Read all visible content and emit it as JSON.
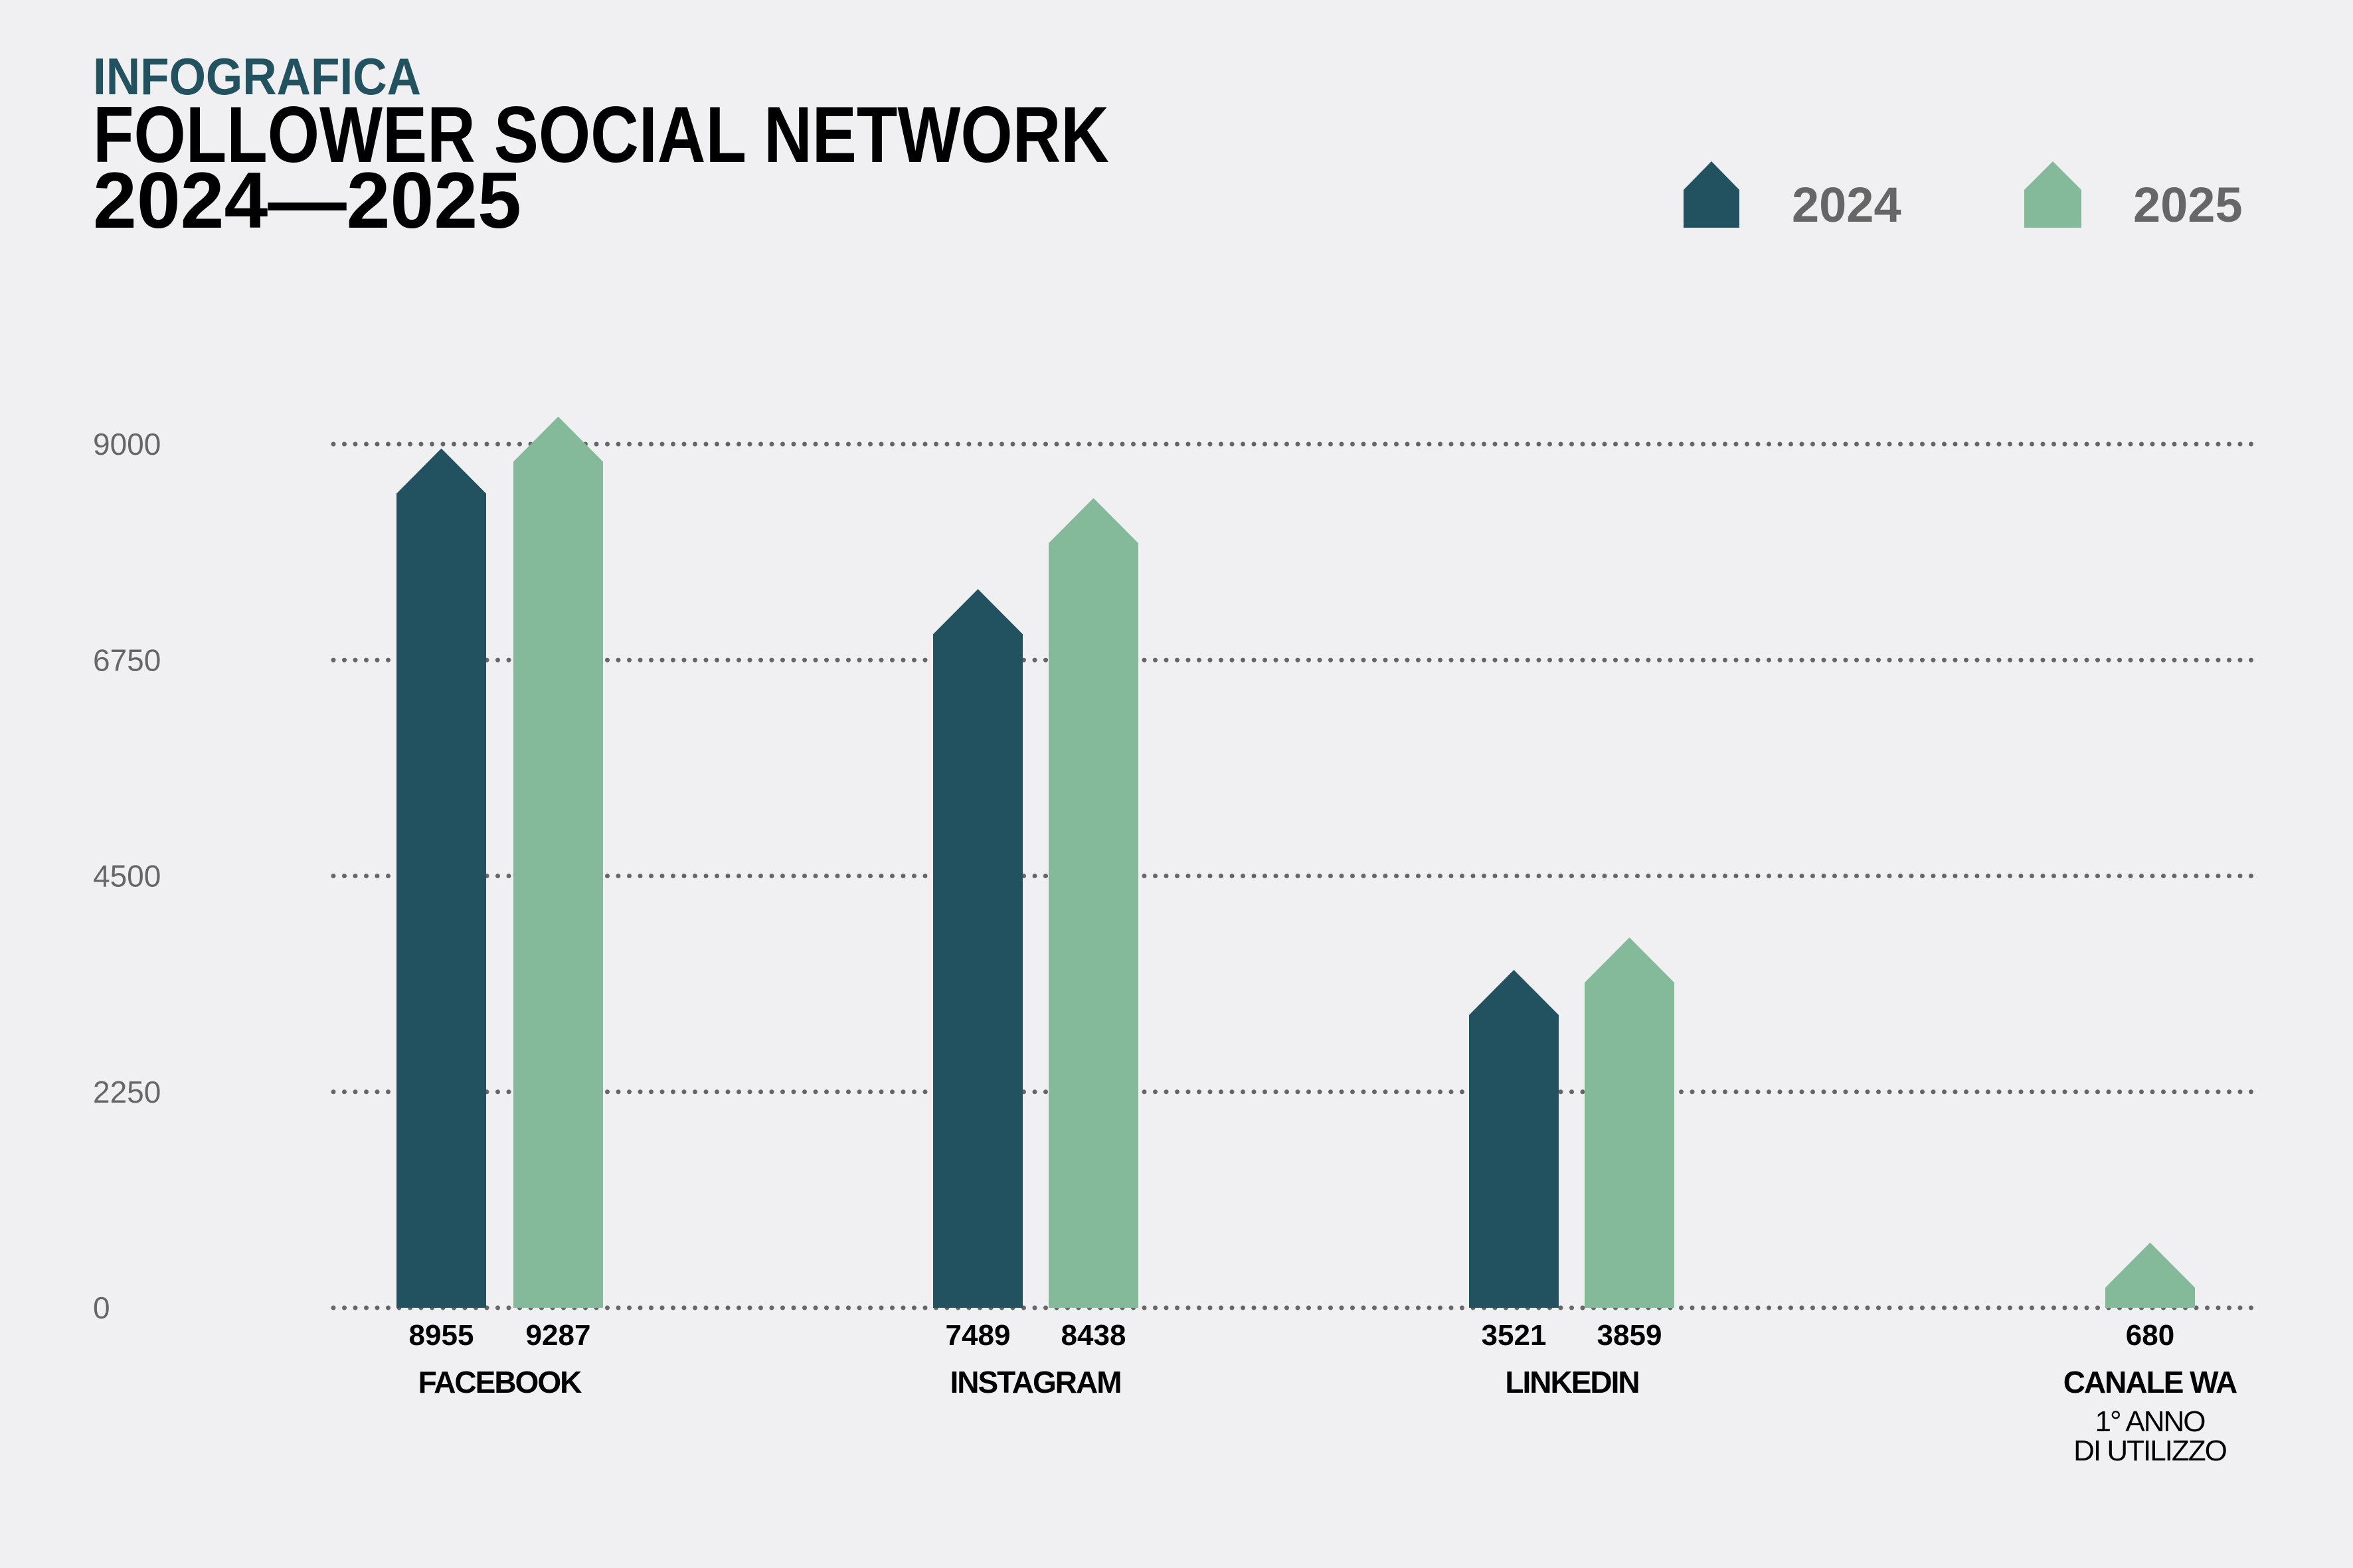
{
  "header": {
    "kicker": "INFOGRAFICA",
    "title_line1": "FOLLOWER SOCIAL NETWORK",
    "title_line2": "2024—2025"
  },
  "colors": {
    "s2024": "#22525f",
    "s2025": "#84ba99",
    "grid": "#666666",
    "axis_text": "#666666",
    "text": "#000000",
    "kicker": "#22525f"
  },
  "chart_data": {
    "type": "bar",
    "title": "FOLLOWER SOCIAL NETWORK 2024—2025",
    "xlabel": "",
    "ylabel": "",
    "ylim": [
      0,
      9000
    ],
    "yticks": [
      "0",
      "2250",
      "4500",
      "6750",
      "9000"
    ],
    "ytick_values": [
      0,
      2250,
      4500,
      6750,
      9000
    ],
    "grid": true,
    "legend_position": "top-right",
    "categories": [
      "FACEBOOK",
      "INSTAGRAM",
      "LINKEDIN",
      "CANALE WA"
    ],
    "category_notes": [
      "",
      "",
      "",
      "1° ANNO DI UTILIZZO"
    ],
    "category_note_lines": [
      "1° ANNO",
      "DI UTILIZZO"
    ],
    "series": [
      {
        "name": "2024",
        "values": [
          8955,
          7489,
          3521,
          null
        ]
      },
      {
        "name": "2025",
        "values": [
          9287,
          8438,
          3859,
          680
        ]
      }
    ],
    "value_labels": [
      [
        "8955",
        "9287"
      ],
      [
        "7489",
        "8438"
      ],
      [
        "3521",
        "3859"
      ],
      [
        null,
        "680"
      ]
    ]
  }
}
